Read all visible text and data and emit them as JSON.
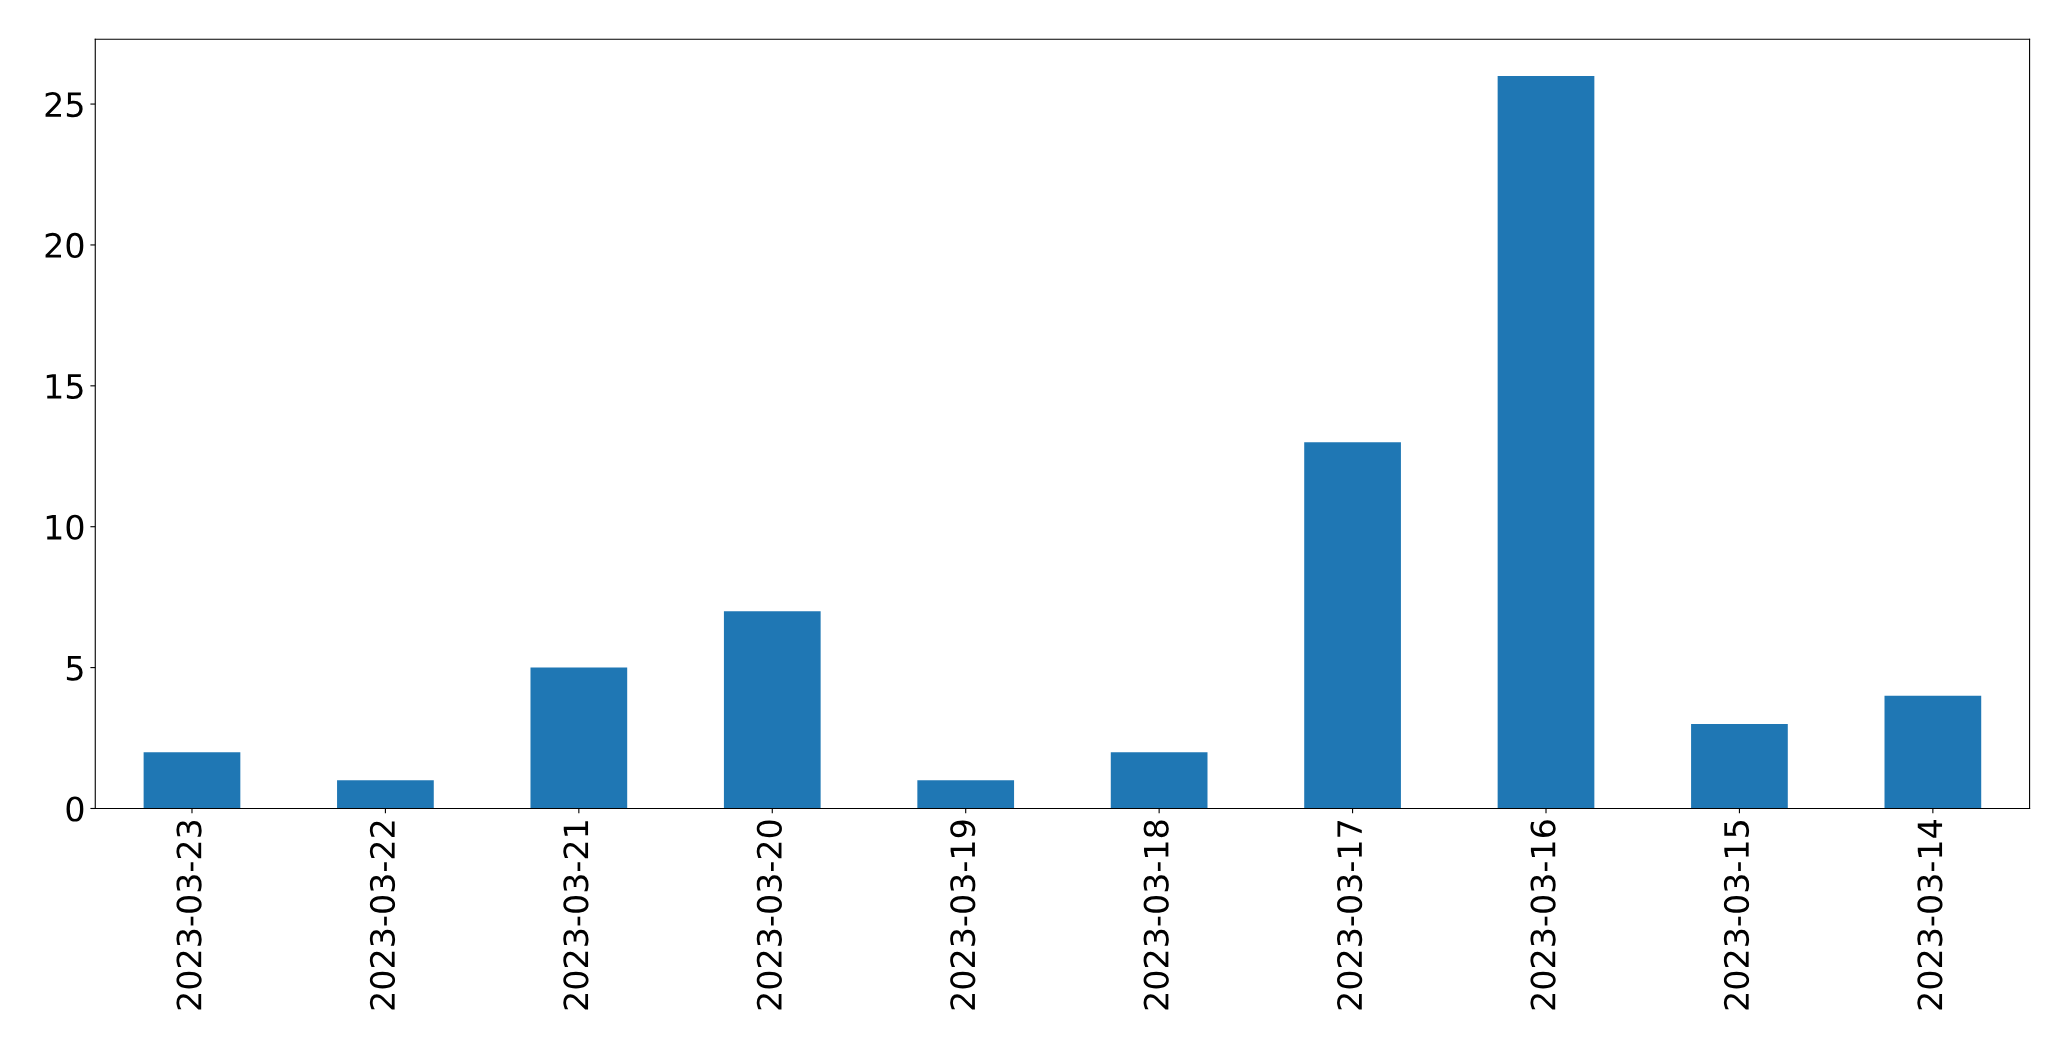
{
  "chart_data": {
    "type": "bar",
    "categories": [
      "2023-03-23",
      "2023-03-22",
      "2023-03-21",
      "2023-03-20",
      "2023-03-19",
      "2023-03-18",
      "2023-03-17",
      "2023-03-16",
      "2023-03-15",
      "2023-03-14"
    ],
    "values": [
      2,
      1,
      5,
      7,
      1,
      2,
      13,
      26,
      3,
      4
    ],
    "color": "#1f77b4",
    "ylim": [
      0,
      27.3
    ],
    "yticks": [
      0,
      5,
      10,
      15,
      20,
      25
    ],
    "grid": false
  }
}
